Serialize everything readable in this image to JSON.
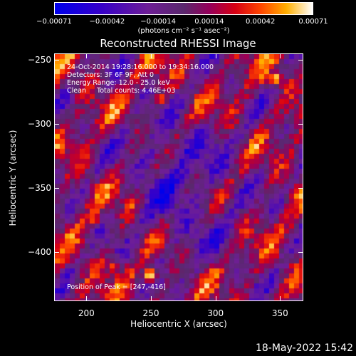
{
  "chart_data": {
    "type": "heatmap",
    "title": "Reconstructed RHESSI Image",
    "xlabel": "Heliocentric X (arcsec)",
    "ylabel": "Heliocentric Y (arcsec)",
    "xlim": [
      175,
      368
    ],
    "ylim": [
      -438,
      -245
    ],
    "xticks": [
      "200",
      "250",
      "300",
      "350"
    ],
    "yticks": [
      "−250",
      "−300",
      "−350",
      "−400"
    ],
    "xtick_values": [
      200,
      250,
      300,
      350
    ],
    "ytick_values": [
      -250,
      -300,
      -350,
      -400
    ],
    "colorbar": {
      "ticks": [
        "−0.00071",
        "−0.00042",
        "−0.00014",
        "0.00014",
        "0.00042",
        "0.00071"
      ],
      "tick_values": [
        -0.00071,
        -0.00042,
        -0.00014,
        0.00014,
        0.00042,
        0.00071
      ],
      "range": [
        -0.00071,
        0.00071
      ],
      "units": "(photons cm⁻² s⁻¹ asec⁻²)"
    },
    "annotations": {
      "time_range": "24-Oct-2014 19:28:16.000 to 19:34:16.000",
      "detectors": "Detectors: 3F 6F 9F, Att 0",
      "energy": "Energy Range: 12.0 - 25.0 keV",
      "method": "Clean     Total counts: 4.46E+03",
      "peak": "Position of Peak = [247,-416]"
    },
    "bright_spots": [
      {
        "x": 345,
        "y": -262,
        "value": 0.00066
      },
      {
        "x": 247,
        "y": -416,
        "value": 0.00071
      },
      {
        "x": 232,
        "y": -361,
        "value": 0.00055
      },
      {
        "x": 203,
        "y": -372,
        "value": 0.00048
      },
      {
        "x": 256,
        "y": -278,
        "value": 0.00045
      },
      {
        "x": 218,
        "y": -410,
        "value": 0.00042
      }
    ],
    "grid": false
  },
  "footer": {
    "timestamp": "18-May-2022 15:42"
  }
}
